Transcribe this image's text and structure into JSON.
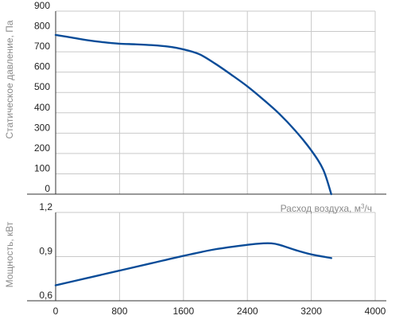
{
  "chart_data": [
    {
      "type": "line",
      "title": "",
      "xlabel": "Расход воздуха, м",
      "xlabel_unit_sup": "3",
      "xlabel_unit_tail": "/ч",
      "ylabel": "Статическое давление, Па",
      "xlim": [
        0,
        4000
      ],
      "ylim": [
        0,
        900
      ],
      "yticks": [
        "0",
        "100",
        "200",
        "300",
        "400",
        "500",
        "600",
        "700",
        "800",
        "900"
      ],
      "grid": true,
      "color": "#0a4c98",
      "series": [
        {
          "x": [
            0,
            200,
            400,
            600,
            800,
            1000,
            1200,
            1400,
            1600,
            1800,
            2000,
            2200,
            2400,
            2600,
            2800,
            3000,
            3200,
            3350,
            3450
          ],
          "y": [
            783,
            770,
            757,
            747,
            740,
            737,
            733,
            726,
            712,
            688,
            641,
            587,
            530,
            465,
            395,
            312,
            215,
            120,
            0
          ]
        }
      ]
    },
    {
      "type": "line",
      "title": "",
      "xlabel": "",
      "ylabel": "Мощность, кВт",
      "xlim": [
        0,
        4000
      ],
      "ylim": [
        0.6,
        1.2
      ],
      "xticks": [
        "0",
        "800",
        "1600",
        "2400",
        "3200",
        "4000"
      ],
      "yticks": [
        "0,6",
        "0,9",
        "1,2"
      ],
      "grid": true,
      "color": "#0a4c98",
      "series": [
        {
          "x": [
            0,
            400,
            800,
            1200,
            1600,
            2000,
            2400,
            2600,
            2700,
            2800,
            3000,
            3200,
            3450
          ],
          "y": [
            0.705,
            0.755,
            0.805,
            0.855,
            0.905,
            0.95,
            0.98,
            0.99,
            0.99,
            0.98,
            0.945,
            0.915,
            0.89
          ]
        }
      ]
    }
  ]
}
